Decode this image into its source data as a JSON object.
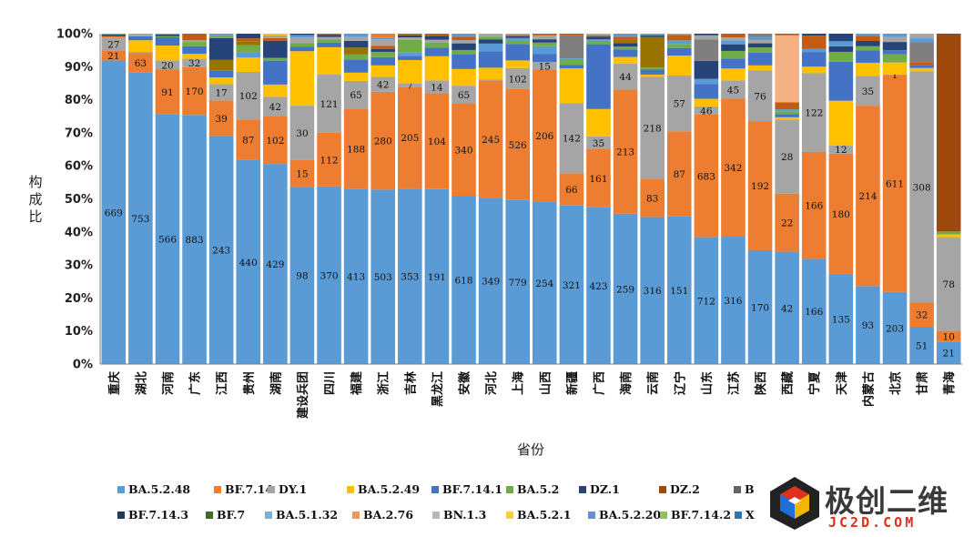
{
  "chart_data": {
    "type": "bar",
    "stacked": true,
    "normalized": true,
    "title": "",
    "xlabel": "省份",
    "ylabel": "构成比",
    "ylim": [
      0,
      100
    ],
    "yticks": [
      "0%",
      "10%",
      "20%",
      "30%",
      "40%",
      "50%",
      "60%",
      "70%",
      "80%",
      "90%",
      "100%"
    ],
    "legend_position": "bottom",
    "categories": [
      "重庆",
      "湖北",
      "河南",
      "广东",
      "江西",
      "贵州",
      "湖南",
      "建设兵团",
      "四川",
      "福建",
      "浙江",
      "吉林",
      "黑龙江",
      "安徽",
      "河北",
      "上海",
      "山西",
      "新疆",
      "广西",
      "海南",
      "云南",
      "辽宁",
      "山东",
      "江苏",
      "陕西",
      "西藏",
      "宁夏",
      "天津",
      "内蒙古",
      "北京",
      "甘肃",
      "青海"
    ],
    "series": [
      {
        "name": "BA.5.2.48",
        "color": "#5b9bd5",
        "values": [
          91.5,
          88.2,
          75.8,
          75.4,
          67.8,
          61.5,
          60.2,
          53.6,
          53.8,
          53.1,
          52.8,
          52.6,
          52.0,
          50.5,
          50.3,
          49.7,
          49.2,
          48.0,
          46.0,
          45.2,
          44.6,
          44.5,
          38.4,
          38.4,
          35.5,
          34.0,
          32.2,
          27.3,
          23.6,
          21.8,
          11.3,
          6.8
        ],
        "labels": [
          "669",
          "753",
          "566",
          "883",
          "243",
          "440",
          "429",
          "98",
          "370",
          "413",
          "503",
          "353",
          "191",
          "618",
          "349",
          "779",
          "254",
          "321",
          "423",
          "259",
          "316",
          "151",
          "712",
          "316",
          "170",
          "42",
          "166",
          "135",
          "93",
          "203",
          "51",
          "21"
        ]
      },
      {
        "name": "BF.7.14",
        "color": "#ed7d31",
        "values": [
          3.0,
          5.9,
          13.5,
          14.5,
          10.6,
          12.2,
          14.4,
          8.2,
          16.2,
          24.2,
          29.6,
          30.5,
          28.5,
          27.7,
          35.5,
          33.6,
          40.0,
          9.8,
          17.0,
          37.3,
          11.6,
          25.6,
          37.1,
          41.6,
          40.2,
          17.6,
          32.7,
          36.4,
          54.6,
          65.6,
          7.3,
          3.2
        ],
        "labels": [
          "21",
          "63",
          "91",
          "170",
          "39",
          "87",
          "102",
          "15",
          "112",
          "188",
          "280",
          "205",
          "104",
          "340",
          "245",
          "526",
          "206",
          "66",
          "161",
          "213",
          "83",
          "87",
          "683",
          "342",
          "192",
          "22",
          "166",
          "180",
          "214",
          "611",
          "32",
          "10"
        ]
      },
      {
        "name": "DY.1",
        "color": "#a5a5a5",
        "values": [
          3.8,
          0.4,
          2.8,
          2.5,
          4.8,
          14.3,
          5.8,
          16.4,
          17.7,
          8.4,
          4.5,
          1.0,
          3.8,
          5.3,
          0.4,
          6.4,
          2.3,
          21.2,
          3.8,
          7.8,
          30.9,
          16.8,
          2.5,
          5.5,
          15.9,
          22.4,
          24.1,
          2.5,
          9.0,
          0.1,
          70.0,
          28.3
        ],
        "labels": [
          "27",
          "",
          "20",
          "32",
          "17",
          "102",
          "42",
          "30",
          "121",
          "65",
          "42",
          "7",
          "14",
          "65",
          "",
          "102",
          "15",
          "142",
          "35",
          "44",
          "218",
          "57",
          "46",
          "45",
          "76",
          "28",
          "122",
          "12",
          "35",
          "1",
          "308",
          "78"
        ]
      }
    ],
    "extra_segments": [
      [
        [
          0,
          "#5b9bd5"
        ],
        [
          0.5,
          "#ed7d31"
        ],
        [
          0.5,
          "#264478"
        ],
        [
          0.3,
          "#70ad47"
        ]
      ],
      [
        [
          3.5,
          "#ffc000"
        ],
        [
          1.2,
          "#4472c4"
        ],
        [
          0.8,
          "#a5a5a5"
        ]
      ],
      [
        [
          4.5,
          "#ffc000"
        ],
        [
          2.5,
          "#4472c4"
        ],
        [
          0.3,
          "#70ad47"
        ],
        [
          0.5,
          "#264478"
        ],
        [
          0.3,
          "#5b9bd5"
        ]
      ],
      [
        [
          1.5,
          "#ffc000"
        ],
        [
          2.3,
          "#4472c4"
        ],
        [
          1.3,
          "#70ad47"
        ],
        [
          0.5,
          "#a5a5a5"
        ],
        [
          2.0,
          "#c55a11"
        ]
      ],
      [
        [
          2.0,
          "#ffc000"
        ],
        [
          2.0,
          "#4472c4"
        ],
        [
          3.2,
          "#997300"
        ],
        [
          6.5,
          "#264478"
        ],
        [
          0.8,
          "#70ad47"
        ],
        [
          0.5,
          "#5b9bd5"
        ]
      ],
      [
        [
          4.3,
          "#ffc000"
        ],
        [
          1.6,
          "#5b9bd5"
        ],
        [
          2.1,
          "#70ad47"
        ],
        [
          1.1,
          "#997300"
        ],
        [
          1.0,
          "#c55a11"
        ],
        [
          1.4,
          "#264478"
        ]
      ],
      [
        [
          3.7,
          "#ffc000"
        ],
        [
          7.2,
          "#4472c4"
        ],
        [
          0.8,
          "#70ad47"
        ],
        [
          5.2,
          "#264478"
        ],
        [
          0.8,
          "#c55a11"
        ],
        [
          0.8,
          "#a5a5a5"
        ],
        [
          0.5,
          "#ffc000"
        ]
      ],
      [
        [
          16.5,
          "#ffc000"
        ],
        [
          1.4,
          "#4472c4"
        ],
        [
          1.1,
          "#70ad47"
        ],
        [
          1.6,
          "#a5a5a5"
        ],
        [
          0.8,
          "#5b9bd5"
        ],
        [
          0.4,
          "#264478"
        ]
      ],
      [
        [
          8.2,
          "#ffc000"
        ],
        [
          1.4,
          "#4472c4"
        ],
        [
          0.9,
          "#70ad47"
        ],
        [
          0.8,
          "#a5a5a5"
        ],
        [
          0.6,
          "#264478"
        ],
        [
          0.4,
          "#c55a11"
        ]
      ],
      [
        [
          2.5,
          "#ffc000"
        ],
        [
          4.0,
          "#4472c4"
        ],
        [
          1.6,
          "#70ad47"
        ],
        [
          2.0,
          "#997300"
        ],
        [
          2.0,
          "#264478"
        ],
        [
          1.2,
          "#a5a5a5"
        ],
        [
          1.0,
          "#5b9bd5"
        ]
      ],
      [
        [
          3.5,
          "#ffc000"
        ],
        [
          2.5,
          "#4472c4"
        ],
        [
          1.6,
          "#70ad47"
        ],
        [
          0.9,
          "#264478"
        ],
        [
          0.9,
          "#c55a11"
        ],
        [
          2.0,
          "#a5a5a5"
        ],
        [
          0.5,
          "#5b9bd5"
        ],
        [
          1.2,
          "#ed7d31"
        ]
      ],
      [
        [
          7.0,
          "#ffc000"
        ],
        [
          1.2,
          "#4472c4"
        ],
        [
          1.2,
          "#5b9bd5"
        ],
        [
          3.6,
          "#70ad47"
        ],
        [
          0.8,
          "#a5a5a5"
        ],
        [
          0.6,
          "#264478"
        ],
        [
          0.5,
          "#997300"
        ]
      ],
      [
        [
          7.2,
          "#ffc000"
        ],
        [
          2.5,
          "#4472c4"
        ],
        [
          1.6,
          "#70ad47"
        ],
        [
          0.8,
          "#a5a5a5"
        ],
        [
          1.2,
          "#264478"
        ],
        [
          0.6,
          "#c55a11"
        ]
      ],
      [
        [
          5.0,
          "#ffc000"
        ],
        [
          4.5,
          "#4472c4"
        ],
        [
          1.2,
          "#70ad47"
        ],
        [
          2.0,
          "#264478"
        ],
        [
          1.0,
          "#a5a5a5"
        ],
        [
          1.0,
          "#c55a11"
        ],
        [
          0.9,
          "#5b9bd5"
        ]
      ],
      [
        [
          3.5,
          "#ffc000"
        ],
        [
          5.0,
          "#4472c4"
        ],
        [
          2.3,
          "#5b9bd5"
        ],
        [
          1.3,
          "#264478"
        ],
        [
          0.8,
          "#70ad47"
        ],
        [
          0.9,
          "#a5a5a5"
        ]
      ],
      [
        [
          2.3,
          "#ffc000"
        ],
        [
          5.0,
          "#4472c4"
        ],
        [
          1.0,
          "#70ad47"
        ],
        [
          0.8,
          "#5b9bd5"
        ],
        [
          0.5,
          "#264478"
        ],
        [
          0.4,
          "#c55a11"
        ],
        [
          0.4,
          "#a5a5a5"
        ]
      ],
      [
        [
          0,
          "#ffc000"
        ],
        [
          2.5,
          "#4472c4"
        ],
        [
          2.3,
          "#5b9bd5"
        ],
        [
          1.1,
          "#70ad47"
        ],
        [
          1.0,
          "#264478"
        ],
        [
          1.2,
          "#a5a5a5"
        ],
        [
          0.5,
          "#c55a11"
        ]
      ],
      [
        [
          10.5,
          "#ffc000"
        ],
        [
          1.0,
          "#4472c4"
        ],
        [
          1.5,
          "#70ad47"
        ],
        [
          0.5,
          "#5b9bd5"
        ],
        [
          7.0,
          "#7f7f7f"
        ],
        [
          0.5,
          "#c55a11"
        ]
      ],
      [
        [
          8.0,
          "#ffc000"
        ],
        [
          19.0,
          "#4472c4"
        ],
        [
          1.0,
          "#70ad47"
        ],
        [
          0.5,
          "#5b9bd5"
        ],
        [
          0.7,
          "#264478"
        ],
        [
          0.4,
          "#c55a11"
        ],
        [
          0.5,
          "#a5a5a5"
        ]
      ],
      [
        [
          2.0,
          "#ffc000"
        ],
        [
          2.3,
          "#4472c4"
        ],
        [
          0.8,
          "#70ad47"
        ],
        [
          1.1,
          "#264478"
        ],
        [
          0.9,
          "#997300"
        ],
        [
          1.0,
          "#c55a11"
        ],
        [
          0.9,
          "#5b9bd5"
        ]
      ],
      [
        [
          0.7,
          "#ffc000"
        ],
        [
          1.5,
          "#4472c4"
        ],
        [
          0.6,
          "#70ad47"
        ],
        [
          9.3,
          "#997300"
        ],
        [
          0.5,
          "#264478"
        ],
        [
          0.5,
          "#5b9bd5"
        ]
      ],
      [
        [
          6.0,
          "#ffc000"
        ],
        [
          2.3,
          "#4472c4"
        ],
        [
          1.2,
          "#70ad47"
        ],
        [
          1.1,
          "#5b9bd5"
        ],
        [
          1.6,
          "#c55a11"
        ],
        [
          0.4,
          "#a5a5a5"
        ]
      ],
      [
        [
          2.3,
          "#ffc000"
        ],
        [
          4.5,
          "#4472c4"
        ],
        [
          1.5,
          "#5b9bd5"
        ],
        [
          5.5,
          "#264478"
        ],
        [
          6.5,
          "#7f7f7f"
        ],
        [
          1.2,
          "#a5a5a5"
        ],
        [
          0.5,
          "#264478"
        ]
      ],
      [
        [
          3.6,
          "#ffc000"
        ],
        [
          3.0,
          "#4472c4"
        ],
        [
          2.3,
          "#70ad47"
        ],
        [
          2.0,
          "#264478"
        ],
        [
          1.2,
          "#5b9bd5"
        ],
        [
          0.9,
          "#a5a5a5"
        ],
        [
          1.1,
          "#c55a11"
        ]
      ],
      [
        [
          1.6,
          "#ffc000"
        ],
        [
          4.0,
          "#4472c4"
        ],
        [
          1.6,
          "#70ad47"
        ],
        [
          1.3,
          "#264478"
        ],
        [
          1.0,
          "#a5a5a5"
        ],
        [
          1.0,
          "#5b9bd5"
        ],
        [
          1.0,
          "#7f7f7f"
        ]
      ],
      [
        [
          0.7,
          "#ffc000"
        ],
        [
          1.0,
          "#4472c4"
        ],
        [
          0.8,
          "#70ad47"
        ],
        [
          0.6,
          "#5b9bd5"
        ],
        [
          2.1,
          "#c55a11"
        ],
        [
          20.3,
          "#f4b183"
        ],
        [
          0.5,
          "#c55a11"
        ]
      ],
      [
        [
          2.0,
          "#ffc000"
        ],
        [
          4.5,
          "#4472c4"
        ],
        [
          1.0,
          "#5b9bd5"
        ],
        [
          4.0,
          "#c55a11"
        ],
        [
          0.6,
          "#264478"
        ]
      ],
      [
        [
          13.5,
          "#ffc000"
        ],
        [
          11.8,
          "#4472c4"
        ],
        [
          3.0,
          "#70ad47"
        ],
        [
          1.7,
          "#264478"
        ],
        [
          1.5,
          "#5b9bd5"
        ],
        [
          2.3,
          "#264478"
        ]
      ],
      [
        [
          4.0,
          "#ffc000"
        ],
        [
          3.8,
          "#4472c4"
        ],
        [
          1.2,
          "#70ad47"
        ],
        [
          1.6,
          "#264478"
        ],
        [
          1.5,
          "#c55a11"
        ],
        [
          0.7,
          "#5b9bd5"
        ]
      ],
      [
        [
          3.6,
          "#ffc000"
        ],
        [
          2.5,
          "#70ad47"
        ],
        [
          1.2,
          "#4472c4"
        ],
        [
          2.5,
          "#264478"
        ],
        [
          1.5,
          "#a5a5a5"
        ],
        [
          1.0,
          "#5b9bd5"
        ]
      ],
      [
        [
          1.0,
          "#ffc000"
        ],
        [
          1.0,
          "#4472c4"
        ],
        [
          0.8,
          "#c55a11"
        ],
        [
          6.0,
          "#7f7f7f"
        ],
        [
          1.2,
          "#5b9bd5"
        ],
        [
          1.4,
          "#a5a5a5"
        ]
      ],
      [
        [
          0.8,
          "#ffc000"
        ],
        [
          0.9,
          "#70ad47"
        ],
        [
          59.7,
          "#9e480e"
        ]
      ]
    ],
    "legend": [
      {
        "name": "BA.5.2.48",
        "color": "#5b9bd5"
      },
      {
        "name": "BF.7.14",
        "color": "#ed7d31"
      },
      {
        "name": "DY.1",
        "color": "#a5a5a5"
      },
      {
        "name": "BA.5.2.49",
        "color": "#ffc000"
      },
      {
        "name": "BF.7.14.1",
        "color": "#4472c4"
      },
      {
        "name": "BA.5.2",
        "color": "#70ad47"
      },
      {
        "name": "DZ.1",
        "color": "#264478"
      },
      {
        "name": "DZ.2",
        "color": "#9e480e"
      },
      {
        "name": "B",
        "color": "#636363"
      },
      {
        "name": "BF.7.14.3",
        "color": "#223a5e"
      },
      {
        "name": "BF.7",
        "color": "#43682b"
      },
      {
        "name": "BA.5.1.32",
        "color": "#7cafdd"
      },
      {
        "name": "BA.2.76",
        "color": "#f1975a"
      },
      {
        "name": "BN.1.3",
        "color": "#b7b7b7"
      },
      {
        "name": "BA.5.2.1",
        "color": "#ffcd33"
      },
      {
        "name": "BA.5.2.20",
        "color": "#698ed0"
      },
      {
        "name": "BF.7.14.2",
        "color": "#8cc168"
      },
      {
        "name": "X",
        "color": "#2e75b6"
      }
    ]
  },
  "watermark": {
    "text_cn": "极创二维",
    "text_url": "JC2D.COM"
  }
}
